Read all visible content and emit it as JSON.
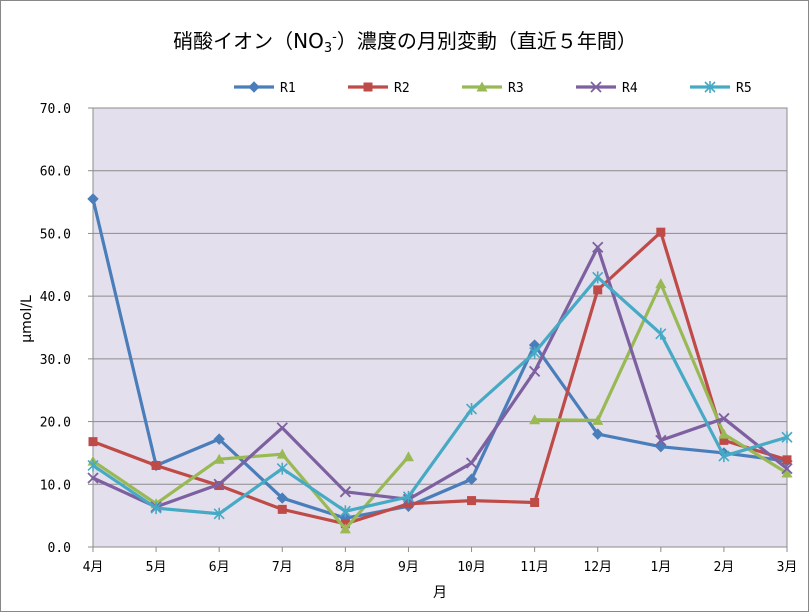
{
  "chart_data": {
    "type": "line",
    "title": "硝酸イオン（NO3-）濃度の月別変動（直近５年間）",
    "title_main": "硝酸イオン（NO",
    "title_sub": "3",
    "title_sup": "-",
    "title_tail": "）濃度の月別変動（直近５年間）",
    "xlabel": "月",
    "ylabel": "μmol/L",
    "ylim": [
      0,
      70
    ],
    "y_ticks": [
      {
        "value": 0,
        "label": "0.0"
      },
      {
        "value": 10,
        "label": "10.0"
      },
      {
        "value": 20,
        "label": "20.0"
      },
      {
        "value": 30,
        "label": "30.0"
      },
      {
        "value": 40,
        "label": "40.0"
      },
      {
        "value": 50,
        "label": "50.0"
      },
      {
        "value": 60,
        "label": "60.0"
      },
      {
        "value": 70,
        "label": "70.0"
      }
    ],
    "categories": [
      "4月",
      "5月",
      "6月",
      "7月",
      "8月",
      "9月",
      "10月",
      "11月",
      "12月",
      "1月",
      "2月",
      "3月"
    ],
    "legend_position": "top",
    "plot_background": "#e4dfec",
    "series": [
      {
        "name": "R1",
        "color": "#4a7ebb",
        "marker": "diamond",
        "values": [
          55.5,
          13.0,
          17.2,
          7.8,
          4.6,
          6.5,
          10.8,
          32.2,
          18.0,
          16.0,
          15.0,
          13.7
        ]
      },
      {
        "name": "R2",
        "color": "#be4b48",
        "marker": "square",
        "values": [
          16.8,
          13.0,
          9.8,
          6.0,
          3.7,
          6.9,
          7.4,
          7.1,
          41.0,
          50.2,
          17.0,
          13.9
        ]
      },
      {
        "name": "R3",
        "color": "#98b954",
        "marker": "triangle",
        "values": [
          13.7,
          6.9,
          14.0,
          14.8,
          2.9,
          14.4,
          null,
          20.3,
          20.2,
          42.0,
          18.0,
          11.8
        ]
      },
      {
        "name": "R4",
        "color": "#7d60a0",
        "marker": "x",
        "values": [
          11.0,
          6.4,
          10.0,
          19.0,
          8.8,
          7.6,
          13.4,
          28.0,
          47.8,
          17.0,
          20.5,
          12.5
        ]
      },
      {
        "name": "R5",
        "color": "#46aac5",
        "marker": "asterisk",
        "values": [
          13.0,
          6.2,
          5.3,
          12.5,
          5.7,
          8.0,
          22.0,
          31.0,
          43.0,
          34.0,
          14.5,
          17.5
        ]
      }
    ]
  }
}
